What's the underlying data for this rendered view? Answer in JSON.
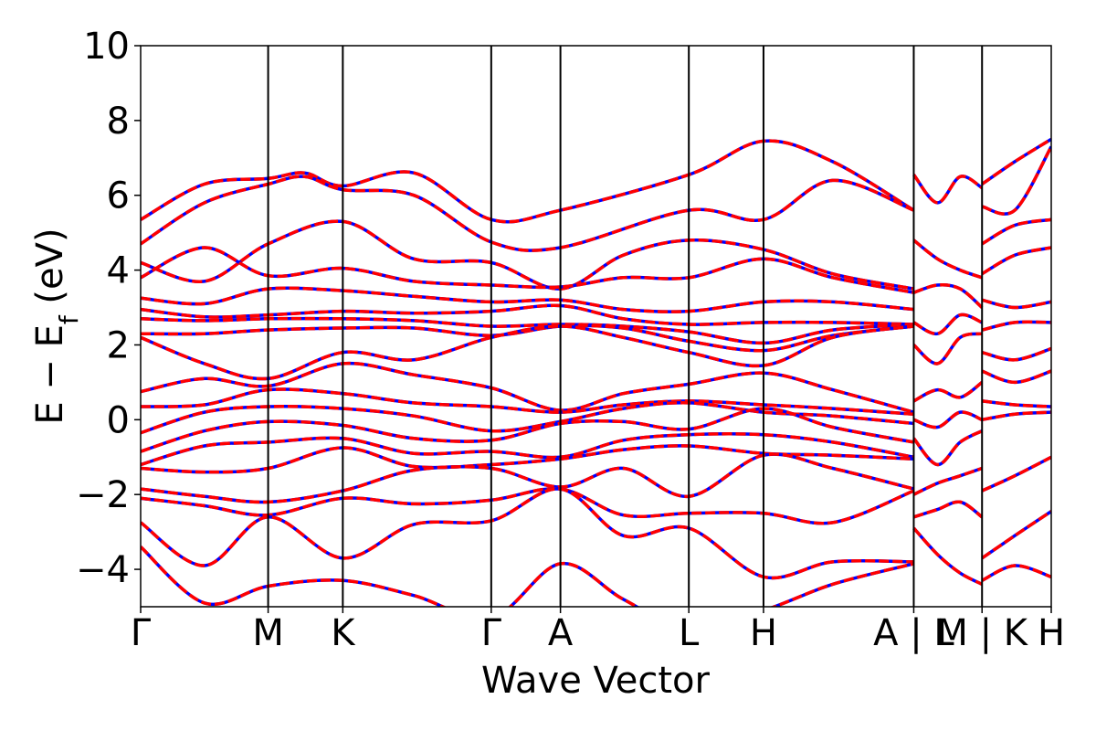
{
  "chart_data": {
    "type": "line",
    "title": "",
    "xlabel": "Wave Vector",
    "ylabel_parts": {
      "main": "E − E",
      "sub": "f",
      "unit": " (eV)"
    },
    "ylim": [
      -5,
      10
    ],
    "yticks": [
      10,
      8,
      6,
      4,
      2,
      0,
      -2,
      -4
    ],
    "ytick_labels": [
      "10",
      "8",
      "6",
      "4",
      "2",
      "0",
      "−2",
      "−4"
    ],
    "xlim": [
      0,
      1
    ],
    "kpoints": [
      {
        "label": "Γ",
        "x": 0.0
      },
      {
        "label": "M",
        "x": 0.14
      },
      {
        "label": "K",
        "x": 0.222
      },
      {
        "label": "Γ",
        "x": 0.385
      },
      {
        "label": "A",
        "x": 0.461
      },
      {
        "label": "L",
        "x": 0.602
      },
      {
        "label": "H",
        "x": 0.684
      },
      {
        "label": "A | L",
        "x": 0.849
      },
      {
        "label": "M | K",
        "x": 0.924
      },
      {
        "label": "H",
        "x": 1.0
      }
    ],
    "series_styles": [
      {
        "color": "#0000ff",
        "style": "solid"
      },
      {
        "color": "#ff0000",
        "style": "dashed"
      }
    ],
    "bands": [
      [
        [
          0,
          5.35
        ],
        [
          0.07,
          6.3
        ],
        [
          0.14,
          6.45
        ],
        [
          0.18,
          6.6
        ],
        [
          0.222,
          6.25
        ],
        [
          0.3,
          6.6
        ],
        [
          0.385,
          5.35
        ],
        [
          0.461,
          5.6
        ],
        [
          0.602,
          6.55
        ],
        [
          0.684,
          7.45
        ],
        [
          0.76,
          6.9
        ],
        [
          0.849,
          5.6
        ]
      ],
      [
        [
          0,
          4.7
        ],
        [
          0.07,
          5.8
        ],
        [
          0.14,
          6.3
        ],
        [
          0.18,
          6.5
        ],
        [
          0.222,
          6.15
        ],
        [
          0.3,
          6.0
        ],
        [
          0.385,
          4.75
        ],
        [
          0.461,
          4.6
        ],
        [
          0.602,
          5.6
        ],
        [
          0.684,
          5.35
        ],
        [
          0.76,
          6.4
        ],
        [
          0.849,
          5.6
        ]
      ],
      [
        [
          0,
          4.2
        ],
        [
          0.07,
          3.7
        ],
        [
          0.14,
          4.7
        ],
        [
          0.222,
          5.3
        ],
        [
          0.3,
          4.3
        ],
        [
          0.385,
          4.2
        ],
        [
          0.461,
          3.5
        ],
        [
          0.53,
          4.4
        ],
        [
          0.602,
          4.8
        ],
        [
          0.684,
          4.55
        ],
        [
          0.76,
          3.9
        ],
        [
          0.849,
          3.5
        ]
      ],
      [
        [
          0,
          3.8
        ],
        [
          0.07,
          4.6
        ],
        [
          0.14,
          3.85
        ],
        [
          0.222,
          4.05
        ],
        [
          0.3,
          3.7
        ],
        [
          0.385,
          3.6
        ],
        [
          0.461,
          3.55
        ],
        [
          0.53,
          3.8
        ],
        [
          0.602,
          3.8
        ],
        [
          0.684,
          4.3
        ],
        [
          0.76,
          3.8
        ],
        [
          0.849,
          3.4
        ]
      ],
      [
        [
          0,
          3.25
        ],
        [
          0.07,
          3.1
        ],
        [
          0.14,
          3.5
        ],
        [
          0.222,
          3.45
        ],
        [
          0.3,
          3.3
        ],
        [
          0.385,
          3.15
        ],
        [
          0.461,
          3.2
        ],
        [
          0.53,
          2.95
        ],
        [
          0.602,
          2.9
        ],
        [
          0.684,
          3.15
        ],
        [
          0.76,
          3.15
        ],
        [
          0.849,
          2.95
        ]
      ],
      [
        [
          0,
          2.95
        ],
        [
          0.07,
          2.75
        ],
        [
          0.14,
          2.8
        ],
        [
          0.222,
          2.9
        ],
        [
          0.3,
          2.85
        ],
        [
          0.385,
          2.9
        ],
        [
          0.461,
          3.05
        ],
        [
          0.53,
          2.7
        ],
        [
          0.602,
          2.55
        ],
        [
          0.684,
          2.6
        ],
        [
          0.76,
          2.6
        ],
        [
          0.849,
          2.55
        ]
      ],
      [
        [
          0,
          2.7
        ],
        [
          0.07,
          2.65
        ],
        [
          0.14,
          2.7
        ],
        [
          0.222,
          2.7
        ],
        [
          0.3,
          2.65
        ],
        [
          0.385,
          2.5
        ],
        [
          0.461,
          2.55
        ],
        [
          0.53,
          2.5
        ],
        [
          0.602,
          2.35
        ],
        [
          0.684,
          2.05
        ],
        [
          0.76,
          2.4
        ],
        [
          0.849,
          2.55
        ]
      ],
      [
        [
          0,
          2.3
        ],
        [
          0.07,
          2.3
        ],
        [
          0.14,
          2.4
        ],
        [
          0.222,
          2.45
        ],
        [
          0.3,
          2.45
        ],
        [
          0.385,
          2.25
        ],
        [
          0.461,
          2.5
        ],
        [
          0.53,
          2.45
        ],
        [
          0.602,
          2.1
        ],
        [
          0.684,
          1.85
        ],
        [
          0.76,
          2.25
        ],
        [
          0.849,
          2.5
        ]
      ],
      [
        [
          0,
          2.2
        ],
        [
          0.07,
          1.5
        ],
        [
          0.14,
          1.1
        ],
        [
          0.222,
          1.8
        ],
        [
          0.3,
          1.6
        ],
        [
          0.385,
          2.2
        ],
        [
          0.461,
          2.5
        ],
        [
          0.53,
          2.2
        ],
        [
          0.602,
          1.8
        ],
        [
          0.684,
          1.45
        ],
        [
          0.76,
          2.2
        ],
        [
          0.849,
          2.5
        ]
      ],
      [
        [
          0,
          0.75
        ],
        [
          0.07,
          1.1
        ],
        [
          0.14,
          0.9
        ],
        [
          0.222,
          1.5
        ],
        [
          0.3,
          1.2
        ],
        [
          0.385,
          0.85
        ],
        [
          0.461,
          0.25
        ],
        [
          0.53,
          0.7
        ],
        [
          0.602,
          0.95
        ],
        [
          0.684,
          1.25
        ],
        [
          0.76,
          0.8
        ],
        [
          0.849,
          0.2
        ]
      ],
      [
        [
          0,
          0.35
        ],
        [
          0.07,
          0.4
        ],
        [
          0.14,
          0.8
        ],
        [
          0.222,
          0.7
        ],
        [
          0.3,
          0.45
        ],
        [
          0.385,
          0.35
        ],
        [
          0.461,
          0.2
        ],
        [
          0.53,
          0.4
        ],
        [
          0.602,
          0.5
        ],
        [
          0.684,
          0.4
        ],
        [
          0.76,
          0.3
        ],
        [
          0.849,
          0.15
        ]
      ],
      [
        [
          0,
          -0.35
        ],
        [
          0.07,
          0.2
        ],
        [
          0.14,
          0.35
        ],
        [
          0.222,
          0.3
        ],
        [
          0.3,
          0.1
        ],
        [
          0.385,
          -0.3
        ],
        [
          0.461,
          -0.05
        ],
        [
          0.53,
          0.3
        ],
        [
          0.602,
          0.45
        ],
        [
          0.684,
          0.2
        ],
        [
          0.76,
          0.1
        ],
        [
          0.849,
          -0.1
        ]
      ],
      [
        [
          0,
          -0.85
        ],
        [
          0.07,
          -0.3
        ],
        [
          0.14,
          -0.05
        ],
        [
          0.222,
          -0.15
        ],
        [
          0.3,
          -0.5
        ],
        [
          0.385,
          -0.55
        ],
        [
          0.461,
          -0.1
        ],
        [
          0.53,
          -0.05
        ],
        [
          0.602,
          -0.25
        ],
        [
          0.684,
          0.3
        ],
        [
          0.76,
          -0.2
        ],
        [
          0.849,
          -0.6
        ]
      ],
      [
        [
          0,
          -1.2
        ],
        [
          0.07,
          -0.7
        ],
        [
          0.14,
          -0.6
        ],
        [
          0.222,
          -0.5
        ],
        [
          0.3,
          -0.9
        ],
        [
          0.385,
          -0.85
        ],
        [
          0.461,
          -1.0
        ],
        [
          0.53,
          -0.55
        ],
        [
          0.602,
          -0.4
        ],
        [
          0.684,
          -0.4
        ],
        [
          0.76,
          -0.6
        ],
        [
          0.849,
          -1.0
        ]
      ],
      [
        [
          0,
          -1.3
        ],
        [
          0.07,
          -1.4
        ],
        [
          0.14,
          -1.3
        ],
        [
          0.222,
          -0.75
        ],
        [
          0.3,
          -1.25
        ],
        [
          0.385,
          -1.2
        ],
        [
          0.461,
          -1.05
        ],
        [
          0.53,
          -0.8
        ],
        [
          0.602,
          -0.7
        ],
        [
          0.684,
          -0.9
        ],
        [
          0.76,
          -0.95
        ],
        [
          0.849,
          -1.05
        ]
      ],
      [
        [
          0,
          -1.85
        ],
        [
          0.07,
          -2.05
        ],
        [
          0.14,
          -2.2
        ],
        [
          0.222,
          -1.9
        ],
        [
          0.3,
          -1.35
        ],
        [
          0.385,
          -1.3
        ],
        [
          0.461,
          -1.8
        ],
        [
          0.53,
          -1.3
        ],
        [
          0.602,
          -2.05
        ],
        [
          0.684,
          -0.95
        ],
        [
          0.76,
          -1.3
        ],
        [
          0.849,
          -1.85
        ]
      ],
      [
        [
          0,
          -2.1
        ],
        [
          0.07,
          -2.3
        ],
        [
          0.14,
          -2.55
        ],
        [
          0.222,
          -2.1
        ],
        [
          0.3,
          -2.25
        ],
        [
          0.385,
          -2.15
        ],
        [
          0.461,
          -1.85
        ],
        [
          0.53,
          -2.55
        ],
        [
          0.602,
          -2.5
        ],
        [
          0.684,
          -2.5
        ],
        [
          0.76,
          -2.75
        ],
        [
          0.849,
          -1.9
        ]
      ],
      [
        [
          0,
          -2.75
        ],
        [
          0.07,
          -3.9
        ],
        [
          0.14,
          -2.6
        ],
        [
          0.222,
          -3.7
        ],
        [
          0.3,
          -2.8
        ],
        [
          0.385,
          -2.7
        ],
        [
          0.461,
          -1.85
        ],
        [
          0.53,
          -3.1
        ],
        [
          0.602,
          -2.9
        ],
        [
          0.684,
          -4.2
        ],
        [
          0.76,
          -3.8
        ],
        [
          0.849,
          -3.8
        ]
      ],
      [
        [
          0,
          -3.4
        ],
        [
          0.07,
          -4.9
        ],
        [
          0.14,
          -4.45
        ],
        [
          0.222,
          -4.3
        ],
        [
          0.3,
          -4.7
        ],
        [
          0.385,
          -5.3
        ],
        [
          0.461,
          -3.85
        ],
        [
          0.53,
          -4.8
        ],
        [
          0.602,
          -5.6
        ],
        [
          0.684,
          -5.1
        ],
        [
          0.76,
          -4.4
        ],
        [
          0.849,
          -3.85
        ]
      ],
      [
        [
          0.849,
          6.55
        ],
        [
          0.875,
          5.8
        ],
        [
          0.9,
          6.5
        ],
        [
          0.924,
          6.2
        ]
      ],
      [
        [
          0.849,
          4.8
        ],
        [
          0.875,
          4.3
        ],
        [
          0.9,
          4.0
        ],
        [
          0.924,
          3.8
        ]
      ],
      [
        [
          0.849,
          3.4
        ],
        [
          0.875,
          3.6
        ],
        [
          0.9,
          3.5
        ],
        [
          0.924,
          3.0
        ]
      ],
      [
        [
          0.849,
          2.6
        ],
        [
          0.875,
          2.3
        ],
        [
          0.9,
          2.8
        ],
        [
          0.924,
          2.6
        ]
      ],
      [
        [
          0.849,
          2.0
        ],
        [
          0.875,
          1.5
        ],
        [
          0.9,
          2.2
        ],
        [
          0.924,
          2.3
        ]
      ],
      [
        [
          0.849,
          0.5
        ],
        [
          0.875,
          0.8
        ],
        [
          0.9,
          0.6
        ],
        [
          0.924,
          1.0
        ]
      ],
      [
        [
          0.849,
          0.0
        ],
        [
          0.875,
          -0.2
        ],
        [
          0.9,
          0.2
        ],
        [
          0.924,
          0.0
        ]
      ],
      [
        [
          0.849,
          -0.5
        ],
        [
          0.875,
          -1.2
        ],
        [
          0.9,
          -0.6
        ],
        [
          0.924,
          -0.3
        ]
      ],
      [
        [
          0.849,
          -2.0
        ],
        [
          0.875,
          -1.7
        ],
        [
          0.9,
          -1.5
        ],
        [
          0.924,
          -1.3
        ]
      ],
      [
        [
          0.849,
          -2.6
        ],
        [
          0.875,
          -2.4
        ],
        [
          0.9,
          -2.2
        ],
        [
          0.924,
          -2.6
        ]
      ],
      [
        [
          0.849,
          -2.9
        ],
        [
          0.875,
          -3.6
        ],
        [
          0.9,
          -4.1
        ],
        [
          0.924,
          -4.4
        ]
      ],
      [
        [
          0.924,
          6.3
        ],
        [
          0.96,
          6.9
        ],
        [
          1.0,
          7.5
        ]
      ],
      [
        [
          0.924,
          5.7
        ],
        [
          0.96,
          5.6
        ],
        [
          1.0,
          7.3
        ]
      ],
      [
        [
          0.924,
          4.7
        ],
        [
          0.96,
          5.2
        ],
        [
          1.0,
          5.35
        ]
      ],
      [
        [
          0.924,
          3.9
        ],
        [
          0.96,
          4.4
        ],
        [
          1.0,
          4.6
        ]
      ],
      [
        [
          0.924,
          3.2
        ],
        [
          0.96,
          3.0
        ],
        [
          1.0,
          3.15
        ]
      ],
      [
        [
          0.924,
          2.4
        ],
        [
          0.96,
          2.6
        ],
        [
          1.0,
          2.6
        ]
      ],
      [
        [
          0.924,
          1.8
        ],
        [
          0.96,
          1.6
        ],
        [
          1.0,
          1.9
        ]
      ],
      [
        [
          0.924,
          1.3
        ],
        [
          0.96,
          1.0
        ],
        [
          1.0,
          1.3
        ]
      ],
      [
        [
          0.924,
          0.5
        ],
        [
          0.96,
          0.4
        ],
        [
          1.0,
          0.35
        ]
      ],
      [
        [
          0.924,
          0.0
        ],
        [
          0.96,
          0.15
        ],
        [
          1.0,
          0.2
        ]
      ],
      [
        [
          0.924,
          -1.9
        ],
        [
          0.96,
          -1.5
        ],
        [
          1.0,
          -1.0
        ]
      ],
      [
        [
          0.924,
          -3.7
        ],
        [
          0.96,
          -3.1
        ],
        [
          1.0,
          -2.45
        ]
      ],
      [
        [
          0.924,
          -4.3
        ],
        [
          0.96,
          -3.9
        ],
        [
          1.0,
          -4.2
        ]
      ]
    ]
  }
}
